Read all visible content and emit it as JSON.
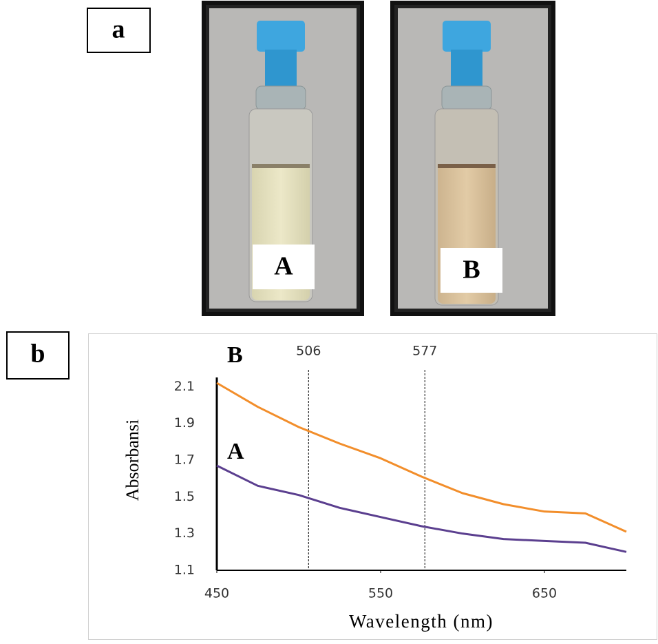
{
  "panels": {
    "a": "a",
    "b": "b"
  },
  "photo_labels": [
    "A",
    "B"
  ],
  "chart_data": {
    "type": "line",
    "x_label": "Wavelength (nm)",
    "y_label": "Absorbansi",
    "x": [
      450,
      475,
      500,
      525,
      550,
      575,
      600,
      625,
      650,
      675,
      700
    ],
    "series": [
      {
        "name": "A",
        "color": "#5b3f8f",
        "values": [
          1.67,
          1.56,
          1.51,
          1.44,
          1.39,
          1.34,
          1.3,
          1.27,
          1.26,
          1.25,
          1.2
        ]
      },
      {
        "name": "B",
        "color": "#f28e2b",
        "values": [
          2.12,
          1.99,
          1.88,
          1.79,
          1.71,
          1.61,
          1.52,
          1.46,
          1.42,
          1.41,
          1.31
        ]
      }
    ],
    "vlines": [
      506,
      577
    ],
    "xlim": [
      450,
      700
    ],
    "ylim": [
      1.1,
      2.15
    ],
    "xticks": [
      450,
      550,
      650
    ],
    "yticks": [
      1.1,
      1.3,
      1.5,
      1.7,
      1.9,
      2.1
    ],
    "grid": false
  }
}
